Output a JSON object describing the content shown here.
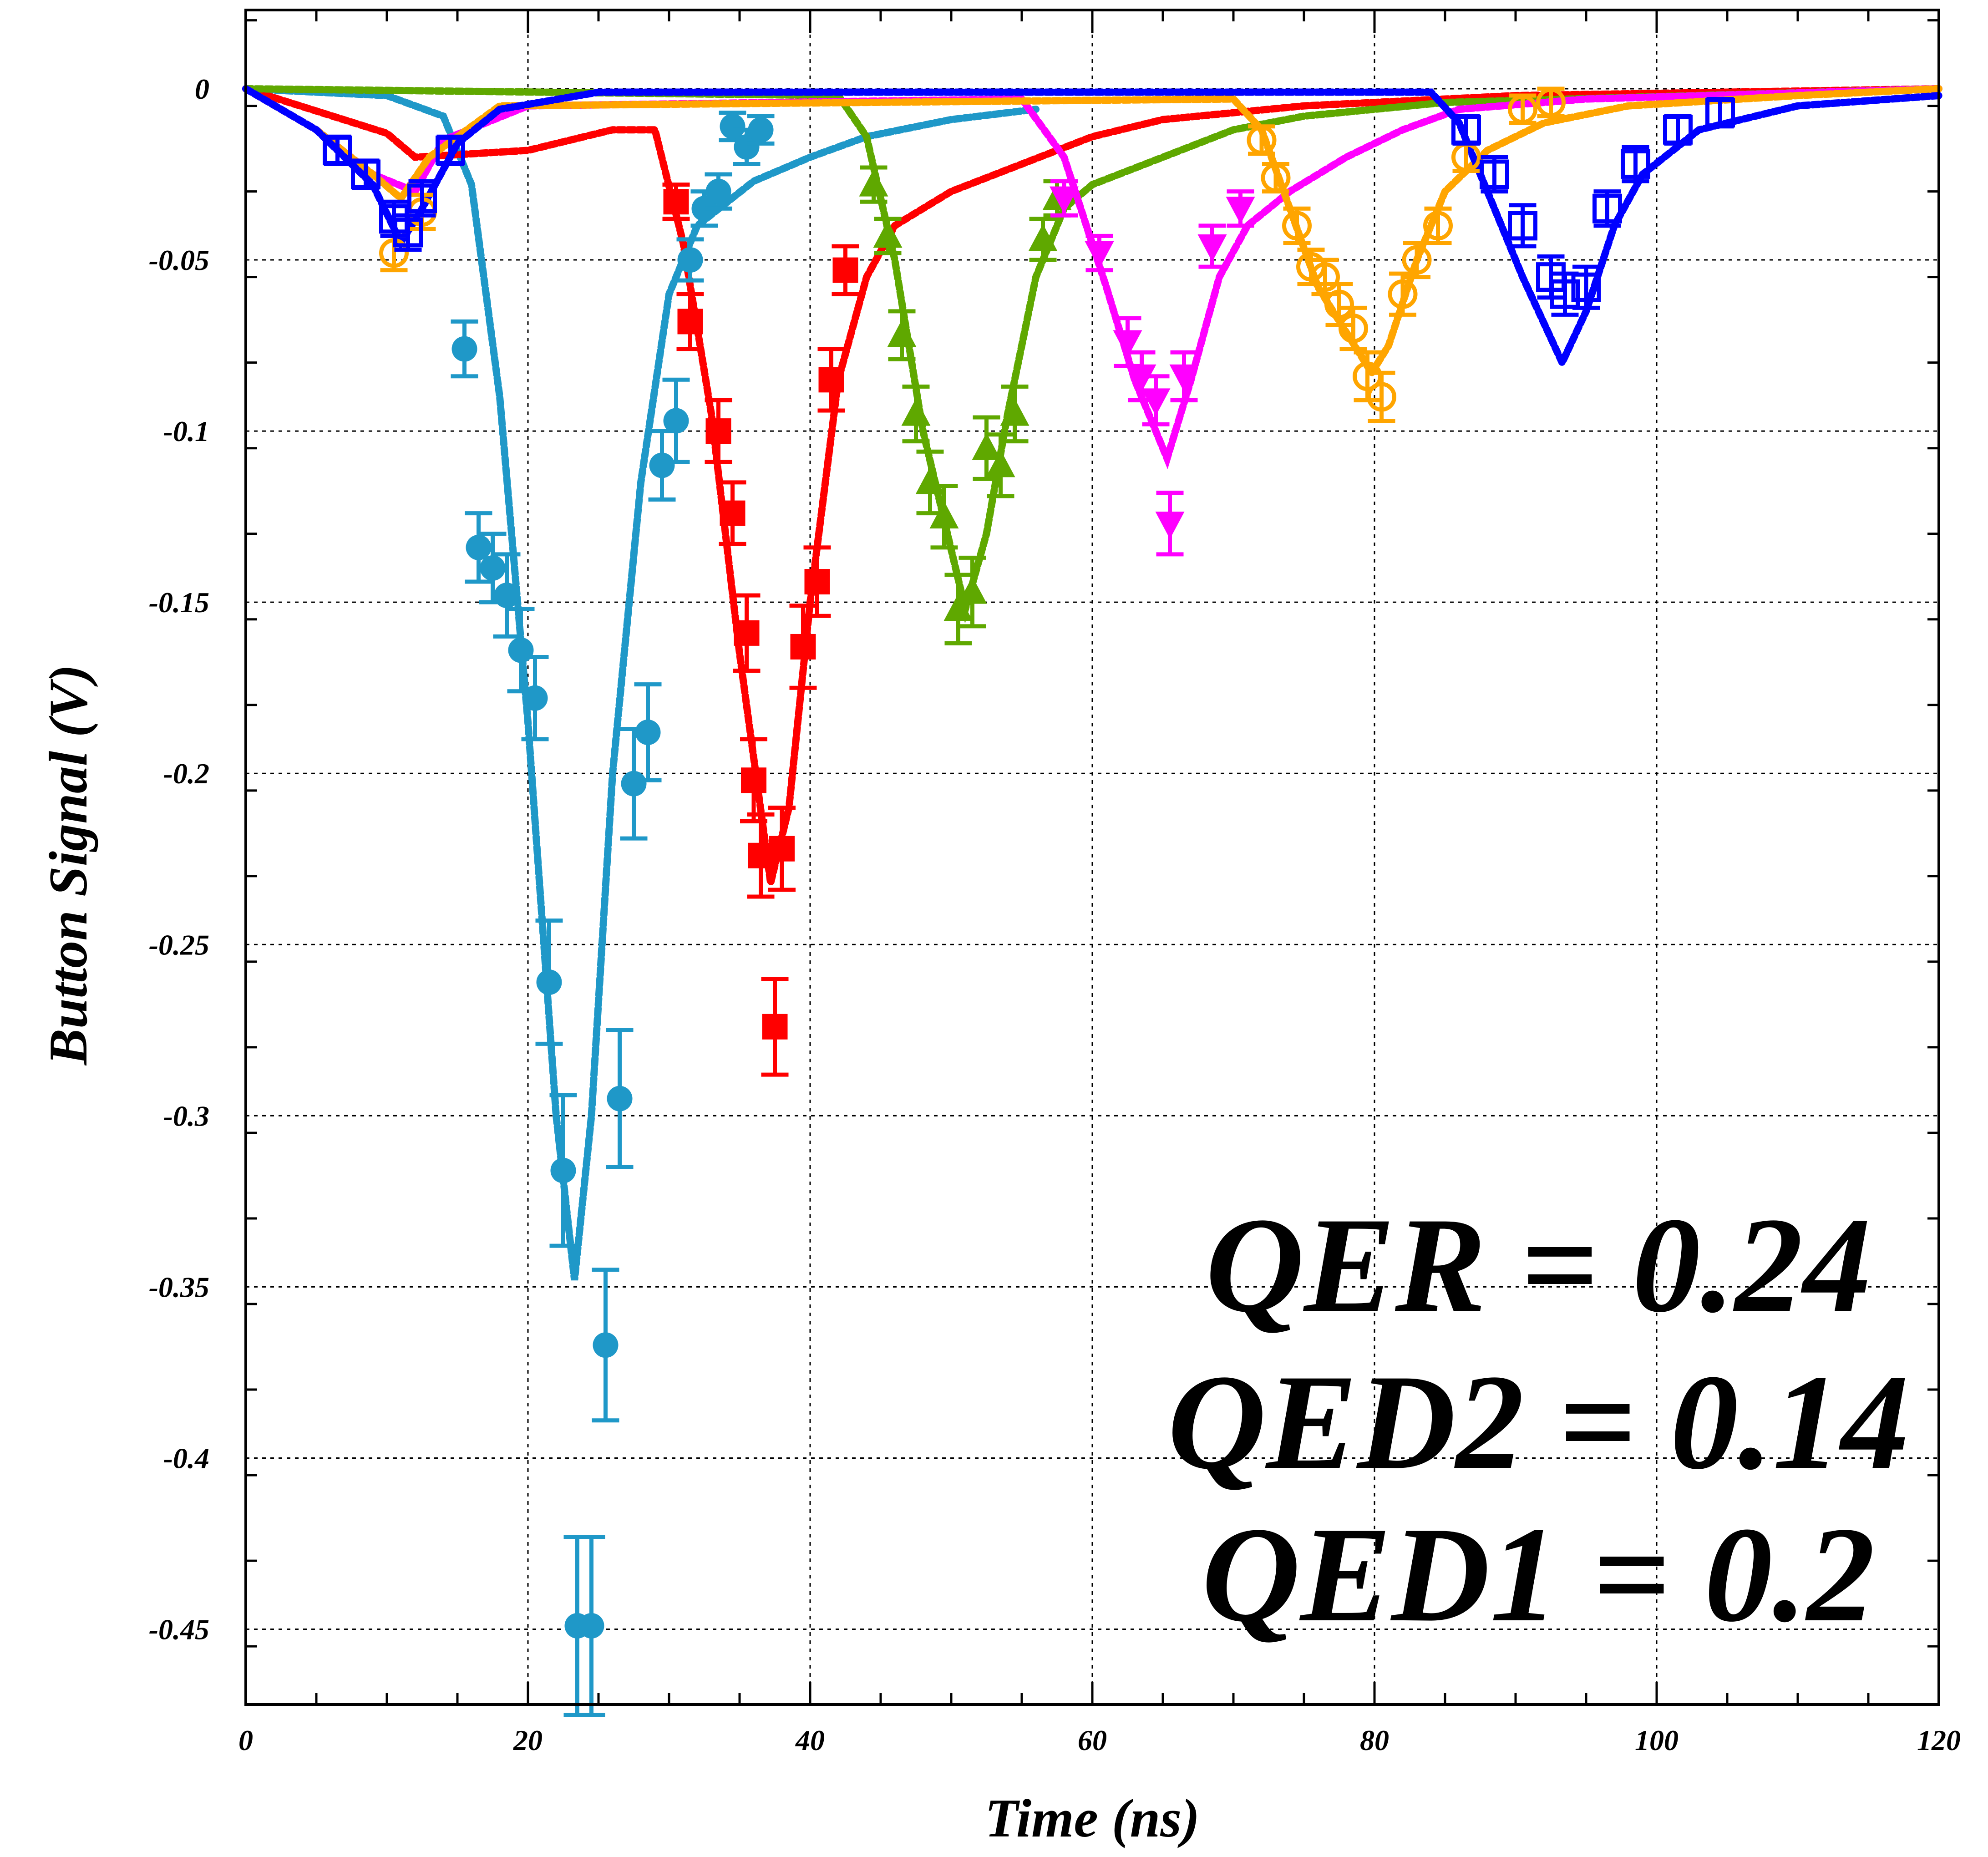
{
  "chart_data": {
    "type": "scatter",
    "xlabel": "Time (ns)",
    "ylabel": "Button Signal (V)",
    "xlim": [
      0,
      120
    ],
    "ylim": [
      -0.472,
      0.023
    ],
    "xticks": [
      0,
      20,
      40,
      60,
      80,
      100,
      120
    ],
    "xtick_labels": [
      "0",
      "20",
      "40",
      "60",
      "80",
      "100",
      "120"
    ],
    "yticks": [
      0,
      -0.05,
      -0.1,
      -0.15,
      -0.2,
      -0.25,
      -0.3,
      -0.35,
      -0.4,
      -0.45
    ],
    "ytick_labels": [
      "0",
      "-0.05",
      "-0.1",
      "-0.15",
      "-0.2",
      "-0.25",
      "-0.3",
      "-0.35",
      "-0.4",
      "-0.45"
    ],
    "grid": true,
    "annotations": [
      "QER = 0.24",
      "QED2 = 0.14",
      "QED1 = 0.2"
    ],
    "series": [
      {
        "color": "#1f98c8",
        "marker": "circle-filled",
        "points": [
          [
            15.5,
            -0.076,
            0.008
          ],
          [
            16.5,
            -0.134,
            0.01
          ],
          [
            17.5,
            -0.14,
            0.01
          ],
          [
            18.5,
            -0.148,
            0.012
          ],
          [
            19.5,
            -0.164,
            0.012
          ],
          [
            20.5,
            -0.178,
            0.012
          ],
          [
            21.5,
            -0.261,
            0.018
          ],
          [
            22.5,
            -0.316,
            0.022
          ],
          [
            23.5,
            -0.449,
            0.026
          ],
          [
            24.5,
            -0.449,
            0.026
          ],
          [
            25.5,
            -0.367,
            0.022
          ],
          [
            26.5,
            -0.295,
            0.02
          ],
          [
            27.5,
            -0.203,
            0.016
          ],
          [
            28.5,
            -0.188,
            0.014
          ],
          [
            29.5,
            -0.11,
            0.01
          ],
          [
            30.5,
            -0.097,
            0.012
          ],
          [
            31.5,
            -0.05,
            0.006
          ],
          [
            32.5,
            -0.035,
            0.005
          ],
          [
            33.5,
            -0.03,
            0.005
          ],
          [
            34.5,
            -0.011,
            0.004
          ],
          [
            35.5,
            -0.017,
            0.005
          ],
          [
            36.5,
            -0.012,
            0.004
          ]
        ],
        "fit": [
          [
            0,
            0
          ],
          [
            10,
            -0.002
          ],
          [
            14,
            -0.008
          ],
          [
            16,
            -0.028
          ],
          [
            18,
            -0.09
          ],
          [
            20,
            -0.185
          ],
          [
            22,
            -0.3
          ],
          [
            23.3,
            -0.348
          ],
          [
            24.5,
            -0.3
          ],
          [
            26,
            -0.2
          ],
          [
            28,
            -0.115
          ],
          [
            30,
            -0.06
          ],
          [
            32,
            -0.04
          ],
          [
            36,
            -0.027
          ],
          [
            40,
            -0.02
          ],
          [
            44,
            -0.014
          ],
          [
            50,
            -0.009
          ],
          [
            56,
            -0.006
          ]
        ]
      },
      {
        "color": "#ff0000",
        "marker": "square-filled",
        "points": [
          [
            30.5,
            -0.033,
            0.005
          ],
          [
            31.5,
            -0.068,
            0.008
          ],
          [
            33.5,
            -0.1,
            0.009
          ],
          [
            34.5,
            -0.124,
            0.009
          ],
          [
            35.5,
            -0.159,
            0.011
          ],
          [
            36.0,
            -0.202,
            0.012
          ],
          [
            36.5,
            -0.224,
            0.012
          ],
          [
            37.5,
            -0.274,
            0.014
          ],
          [
            38.0,
            -0.222,
            0.012
          ],
          [
            39.5,
            -0.163,
            0.012
          ],
          [
            40.5,
            -0.144,
            0.01
          ],
          [
            41.5,
            -0.085,
            0.009
          ],
          [
            42.5,
            -0.053,
            0.007
          ]
        ],
        "fit": [
          [
            0,
            0
          ],
          [
            10,
            -0.013
          ],
          [
            12,
            -0.02
          ],
          [
            20,
            -0.018
          ],
          [
            26,
            -0.012
          ],
          [
            29,
            -0.012
          ],
          [
            31,
            -0.045
          ],
          [
            33,
            -0.095
          ],
          [
            35,
            -0.165
          ],
          [
            37.2,
            -0.232
          ],
          [
            38.5,
            -0.21
          ],
          [
            40,
            -0.15
          ],
          [
            42,
            -0.085
          ],
          [
            44,
            -0.055
          ],
          [
            46,
            -0.04
          ],
          [
            50,
            -0.03
          ],
          [
            55,
            -0.022
          ],
          [
            60,
            -0.014
          ],
          [
            65,
            -0.009
          ],
          [
            75,
            -0.005
          ],
          [
            90,
            -0.002
          ],
          [
            120,
            0
          ]
        ]
      },
      {
        "color": "#5fa800",
        "marker": "triangle-up-filled",
        "points": [
          [
            44.5,
            -0.028,
            0.005
          ],
          [
            45.5,
            -0.043,
            0.005
          ],
          [
            46.5,
            -0.072,
            0.007
          ],
          [
            47.5,
            -0.095,
            0.008
          ],
          [
            48.5,
            -0.115,
            0.009
          ],
          [
            49.5,
            -0.125,
            0.009
          ],
          [
            50.5,
            -0.152,
            0.01
          ],
          [
            51.5,
            -0.147,
            0.01
          ],
          [
            52.5,
            -0.105,
            0.009
          ],
          [
            53.5,
            -0.11,
            0.009
          ],
          [
            54.5,
            -0.095,
            0.008
          ],
          [
            56.5,
            -0.044,
            0.006
          ],
          [
            57.5,
            -0.032,
            0.005
          ]
        ],
        "fit": [
          [
            0,
            0
          ],
          [
            42,
            -0.002
          ],
          [
            44,
            -0.014
          ],
          [
            46,
            -0.05
          ],
          [
            48,
            -0.1
          ],
          [
            51,
            -0.152
          ],
          [
            52.5,
            -0.13
          ],
          [
            54,
            -0.095
          ],
          [
            56,
            -0.055
          ],
          [
            58,
            -0.035
          ],
          [
            60,
            -0.028
          ],
          [
            65,
            -0.02
          ],
          [
            70,
            -0.012
          ],
          [
            75,
            -0.008
          ],
          [
            85,
            -0.004
          ],
          [
            120,
            0
          ]
        ]
      },
      {
        "color": "#ff00ff",
        "marker": "triangle-down-filled",
        "points": [
          [
            58.0,
            -0.032,
            0.005
          ],
          [
            60.5,
            -0.048,
            0.005
          ],
          [
            62.5,
            -0.074,
            0.007
          ],
          [
            63.5,
            -0.084,
            0.007
          ],
          [
            64.5,
            -0.091,
            0.007
          ],
          [
            65.5,
            -0.127,
            0.009
          ],
          [
            66.5,
            -0.084,
            0.007
          ],
          [
            68.5,
            -0.046,
            0.006
          ],
          [
            70.5,
            -0.035,
            0.005
          ]
        ],
        "fit": [
          [
            0,
            0
          ],
          [
            5,
            -0.012
          ],
          [
            9,
            -0.025
          ],
          [
            12,
            -0.03
          ],
          [
            14,
            -0.015
          ],
          [
            20,
            -0.005
          ],
          [
            55,
            -0.003
          ],
          [
            58,
            -0.02
          ],
          [
            61,
            -0.058
          ],
          [
            63,
            -0.085
          ],
          [
            65.3,
            -0.108
          ],
          [
            67,
            -0.085
          ],
          [
            69,
            -0.055
          ],
          [
            71,
            -0.04
          ],
          [
            74,
            -0.03
          ],
          [
            78,
            -0.02
          ],
          [
            82,
            -0.012
          ],
          [
            86,
            -0.006
          ],
          [
            95,
            -0.003
          ],
          [
            120,
            0
          ]
        ]
      },
      {
        "color": "#ffa500",
        "marker": "circle-open",
        "points": [
          [
            10.5,
            -0.048,
            0.005
          ],
          [
            12.5,
            -0.036,
            0.005
          ],
          [
            72.0,
            -0.015,
            0.004
          ],
          [
            73.0,
            -0.026,
            0.004
          ],
          [
            74.5,
            -0.04,
            0.005
          ],
          [
            75.5,
            -0.052,
            0.005
          ],
          [
            76.5,
            -0.055,
            0.005
          ],
          [
            77.5,
            -0.063,
            0.006
          ],
          [
            78.5,
            -0.07,
            0.006
          ],
          [
            79.5,
            -0.084,
            0.007
          ],
          [
            80.5,
            -0.09,
            0.007
          ],
          [
            82.0,
            -0.06,
            0.006
          ],
          [
            83.0,
            -0.05,
            0.005
          ],
          [
            84.5,
            -0.04,
            0.005
          ],
          [
            86.5,
            -0.02,
            0.004
          ],
          [
            90.5,
            -0.006,
            0.004
          ],
          [
            92.5,
            -0.004,
            0.004
          ]
        ],
        "fit": [
          [
            0,
            0
          ],
          [
            5,
            -0.012
          ],
          [
            9,
            -0.025
          ],
          [
            11,
            -0.032
          ],
          [
            13,
            -0.02
          ],
          [
            18,
            -0.005
          ],
          [
            70,
            -0.003
          ],
          [
            72,
            -0.012
          ],
          [
            74,
            -0.035
          ],
          [
            76,
            -0.058
          ],
          [
            79.8,
            -0.083
          ],
          [
            81,
            -0.075
          ],
          [
            83,
            -0.05
          ],
          [
            85,
            -0.03
          ],
          [
            88,
            -0.018
          ],
          [
            92,
            -0.01
          ],
          [
            98,
            -0.005
          ],
          [
            110,
            -0.002
          ],
          [
            120,
            0
          ]
        ]
      },
      {
        "color": "#0000ff",
        "marker": "square-open",
        "points": [
          [
            6.5,
            -0.018,
            0.004
          ],
          [
            8.5,
            -0.025,
            0.004
          ],
          [
            10.5,
            -0.038,
            0.005
          ],
          [
            11.5,
            -0.042,
            0.005
          ],
          [
            12.5,
            -0.032,
            0.005
          ],
          [
            14.5,
            -0.018,
            0.004
          ],
          [
            86.5,
            -0.012,
            0.004
          ],
          [
            88.5,
            -0.025,
            0.005
          ],
          [
            90.5,
            -0.04,
            0.006
          ],
          [
            92.5,
            -0.055,
            0.006
          ],
          [
            93.5,
            -0.06,
            0.006
          ],
          [
            95.0,
            -0.058,
            0.006
          ],
          [
            96.5,
            -0.035,
            0.005
          ],
          [
            98.5,
            -0.022,
            0.005
          ],
          [
            101.5,
            -0.012,
            0.004
          ],
          [
            104.5,
            -0.007,
            0.004
          ]
        ],
        "fit": [
          [
            0,
            0
          ],
          [
            5,
            -0.012
          ],
          [
            9,
            -0.028
          ],
          [
            11,
            -0.045
          ],
          [
            12.5,
            -0.035
          ],
          [
            15,
            -0.016
          ],
          [
            18,
            -0.006
          ],
          [
            25,
            -0.001
          ],
          [
            84,
            -0.001
          ],
          [
            86,
            -0.01
          ],
          [
            88,
            -0.03
          ],
          [
            90.5,
            -0.055
          ],
          [
            93.3,
            -0.08
          ],
          [
            95,
            -0.065
          ],
          [
            97,
            -0.04
          ],
          [
            99,
            -0.025
          ],
          [
            103,
            -0.012
          ],
          [
            110,
            -0.005
          ],
          [
            120,
            -0.002
          ]
        ]
      }
    ]
  }
}
